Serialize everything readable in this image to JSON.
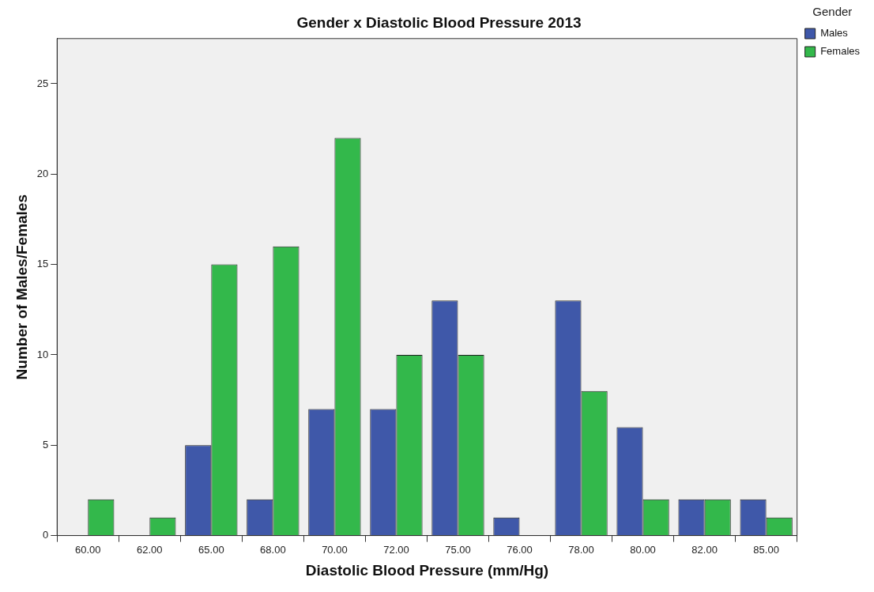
{
  "chart_data": {
    "type": "bar",
    "title": "Gender x Diastolic Blood Pressure 2013",
    "xlabel": "Diastolic Blood Pressure (mm/Hg)",
    "ylabel": "Number of Males/Females",
    "legend_title": "Gender",
    "categories": [
      "60.00",
      "62.00",
      "65.00",
      "68.00",
      "70.00",
      "72.00",
      "75.00",
      "76.00",
      "78.00",
      "80.00",
      "82.00",
      "85.00"
    ],
    "series": [
      {
        "name": "Males",
        "color": "#3f58a9",
        "values": [
          0,
          0,
          5,
          2,
          7,
          7,
          13,
          1,
          13,
          6,
          2,
          2
        ]
      },
      {
        "name": "Females",
        "color": "#33b84b",
        "values": [
          2,
          1,
          15,
          16,
          22,
          10,
          10,
          0,
          8,
          2,
          2,
          1
        ]
      }
    ],
    "ylim": [
      0,
      27.5
    ],
    "yticks": [
      0,
      5,
      10,
      15,
      20,
      25
    ],
    "grid": false,
    "legend": "top right"
  }
}
